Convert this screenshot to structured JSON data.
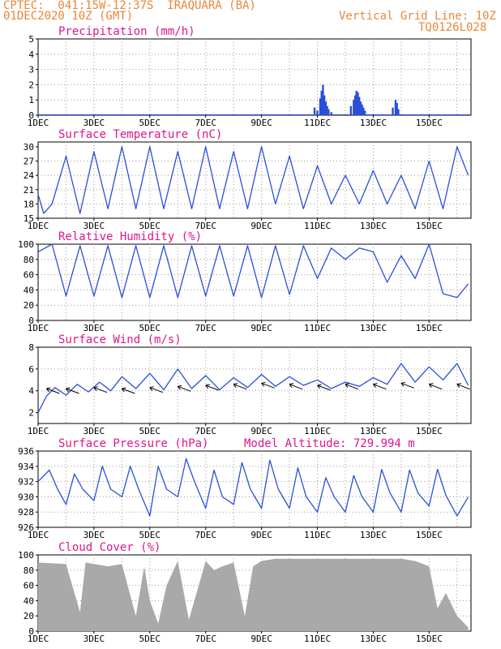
{
  "header": {
    "line1": "CPTEC:  041:15W-12:37S  IRAQUARA (BA)",
    "line2": "01DEC2020 10Z (GMT)",
    "grid_note": "Vertical Grid Line: 10Z",
    "code": "TQ0126L028"
  },
  "colors": {
    "header": "#e8873a",
    "title": "#e0168c",
    "series": "#2a4fd8",
    "cloud": "#a9a9a9",
    "grid": "#9a9a9a",
    "arrow": "#000000"
  },
  "x_ticks": [
    "1DEC",
    "3DEC",
    "5DEC",
    "7DEC",
    "9DEC",
    "11DEC",
    "13DEC",
    "15DEC"
  ],
  "chart_data": [
    {
      "type": "bar",
      "title": "Precipitation (mm/h)",
      "ylim": [
        0,
        5
      ],
      "yticks": [
        "0",
        "1",
        "2",
        "3",
        "4",
        "5"
      ],
      "x_unit": "days since 01DEC2020 10Z",
      "x": [
        9.9,
        10.0,
        10.1,
        10.15,
        10.2,
        10.25,
        10.3,
        10.35,
        10.4,
        10.5,
        11.2,
        11.3,
        11.35,
        11.4,
        11.45,
        11.5,
        11.55,
        11.6,
        11.65,
        11.7,
        12.7,
        12.8,
        12.85,
        12.9
      ],
      "values": [
        0.5,
        0.3,
        1.1,
        1.6,
        2.0,
        1.3,
        0.9,
        0.6,
        0.4,
        0.2,
        0.6,
        1.0,
        1.3,
        1.6,
        1.5,
        1.2,
        0.9,
        0.7,
        0.5,
        0.3,
        0.5,
        1.0,
        0.8,
        0.4
      ]
    },
    {
      "type": "line",
      "title": "Surface Temperature (nC)",
      "ylim": [
        15,
        31
      ],
      "yticks": [
        "15",
        "18",
        "21",
        "24",
        "27",
        "30"
      ],
      "x": [
        0.0,
        0.2,
        0.5,
        1.0,
        1.5,
        2.0,
        2.5,
        3.0,
        3.5,
        4.0,
        4.5,
        5.0,
        5.5,
        6.0,
        6.5,
        7.0,
        7.5,
        8.0,
        8.5,
        9.0,
        9.5,
        10.0,
        10.5,
        11.0,
        11.5,
        12.0,
        12.5,
        13.0,
        13.5,
        14.0,
        14.5,
        15.0,
        15.4
      ],
      "values": [
        20,
        16,
        18,
        28,
        16,
        29,
        17,
        30,
        17,
        30,
        17,
        29,
        17,
        30,
        17,
        29,
        17,
        30,
        18,
        28,
        17,
        26,
        18,
        24,
        18,
        25,
        18,
        24,
        17,
        27,
        17,
        30,
        24
      ]
    },
    {
      "type": "line",
      "title": "Relative Humidity (%)",
      "ylim": [
        0,
        100
      ],
      "yticks": [
        "0",
        "20",
        "40",
        "60",
        "80",
        "100"
      ],
      "x": [
        0.0,
        0.5,
        1.0,
        1.5,
        2.0,
        2.5,
        3.0,
        3.5,
        4.0,
        4.5,
        5.0,
        5.5,
        6.0,
        6.5,
        7.0,
        7.5,
        8.0,
        8.5,
        9.0,
        9.5,
        10.0,
        10.5,
        11.0,
        11.5,
        12.0,
        12.5,
        13.0,
        13.5,
        14.0,
        14.5,
        15.0,
        15.4
      ],
      "values": [
        90,
        100,
        32,
        98,
        32,
        98,
        30,
        98,
        30,
        98,
        30,
        98,
        32,
        98,
        32,
        98,
        30,
        98,
        34,
        98,
        55,
        95,
        80,
        95,
        90,
        50,
        85,
        55,
        100,
        35,
        30,
        48
      ]
    },
    {
      "type": "line",
      "title": "Surface Wind (m/s)",
      "ylim": [
        1,
        8
      ],
      "yticks": [
        "2",
        "4",
        "6",
        "8"
      ],
      "x": [
        0.0,
        0.3,
        0.6,
        1.0,
        1.4,
        1.8,
        2.2,
        2.6,
        3.0,
        3.5,
        4.0,
        4.5,
        5.0,
        5.5,
        6.0,
        6.5,
        7.0,
        7.5,
        8.0,
        8.5,
        9.0,
        9.5,
        10.0,
        10.5,
        11.0,
        11.5,
        12.0,
        12.5,
        13.0,
        13.5,
        14.0,
        14.5,
        15.0,
        15.4
      ],
      "values": [
        2.0,
        3.5,
        4.3,
        3.6,
        4.6,
        3.9,
        4.8,
        4.0,
        5.3,
        4.2,
        5.6,
        4.1,
        6.0,
        4.2,
        5.4,
        4.1,
        5.2,
        4.3,
        5.5,
        4.4,
        5.3,
        4.5,
        5.0,
        4.2,
        4.8,
        4.4,
        5.2,
        4.6,
        6.5,
        4.8,
        6.2,
        5.0,
        6.5,
        4.5
      ],
      "barbs": [
        [
          0.3,
          4.2,
          1
        ],
        [
          1.0,
          4.2,
          1
        ],
        [
          2.0,
          4.3,
          1
        ],
        [
          3.0,
          4.2,
          1
        ],
        [
          4.0,
          4.3,
          1
        ],
        [
          5.0,
          4.4,
          1
        ],
        [
          6.0,
          4.5,
          1
        ],
        [
          7.0,
          4.6,
          1
        ],
        [
          8.0,
          4.7,
          1
        ],
        [
          9.0,
          4.6,
          1
        ],
        [
          10.0,
          4.5,
          1
        ],
        [
          11.0,
          4.6,
          1
        ],
        [
          12.0,
          4.6,
          1
        ],
        [
          13.0,
          4.7,
          1
        ],
        [
          14.0,
          4.6,
          1
        ],
        [
          15.0,
          4.6,
          1
        ]
      ]
    },
    {
      "type": "line",
      "title": "Surface Pressure (hPa)",
      "annotation": "Model Altitude: 729.994 m",
      "ylim": [
        926,
        936
      ],
      "yticks": [
        "926",
        "928",
        "930",
        "932",
        "934",
        "936"
      ],
      "x": [
        0.0,
        0.4,
        0.7,
        1.0,
        1.3,
        1.6,
        2.0,
        2.3,
        2.6,
        3.0,
        3.3,
        3.6,
        4.0,
        4.3,
        4.6,
        5.0,
        5.3,
        5.6,
        6.0,
        6.3,
        6.6,
        7.0,
        7.3,
        7.6,
        8.0,
        8.3,
        8.6,
        9.0,
        9.3,
        9.6,
        10.0,
        10.3,
        10.6,
        11.0,
        11.3,
        11.6,
        12.0,
        12.3,
        12.6,
        13.0,
        13.3,
        13.6,
        14.0,
        14.3,
        14.6,
        15.0,
        15.4
      ],
      "values": [
        932,
        933.5,
        931,
        929,
        933,
        931,
        929.5,
        934,
        931,
        930,
        934,
        931,
        927.5,
        934,
        931,
        930,
        935,
        932,
        928.5,
        933.5,
        930,
        929,
        934.5,
        931,
        928.5,
        934.8,
        931,
        928.5,
        933.8,
        930,
        928,
        932.5,
        930,
        928,
        932.8,
        930,
        928,
        933.6,
        930.5,
        928,
        933.5,
        930.5,
        928.8,
        933.6,
        930.2,
        927.5,
        930
      ]
    },
    {
      "type": "area",
      "title": "Cloud Cover (%)",
      "ylim": [
        0,
        100
      ],
      "yticks": [
        "0",
        "20",
        "40",
        "60",
        "80",
        "100"
      ],
      "x": [
        0.0,
        1.0,
        1.5,
        1.7,
        2.0,
        2.5,
        3.0,
        3.5,
        3.8,
        4.0,
        4.3,
        4.6,
        5.0,
        5.4,
        6.0,
        6.3,
        6.6,
        7.0,
        7.4,
        7.7,
        8.0,
        8.5,
        9.0,
        10.0,
        11.0,
        12.0,
        13.0,
        13.5,
        14.0,
        14.3,
        14.6,
        15.0,
        15.4
      ],
      "values": [
        90,
        88,
        25,
        90,
        88,
        85,
        88,
        20,
        85,
        40,
        10,
        60,
        92,
        15,
        92,
        80,
        85,
        90,
        20,
        85,
        92,
        95,
        95,
        95,
        95,
        95,
        95,
        92,
        85,
        30,
        50,
        20,
        5
      ]
    }
  ]
}
